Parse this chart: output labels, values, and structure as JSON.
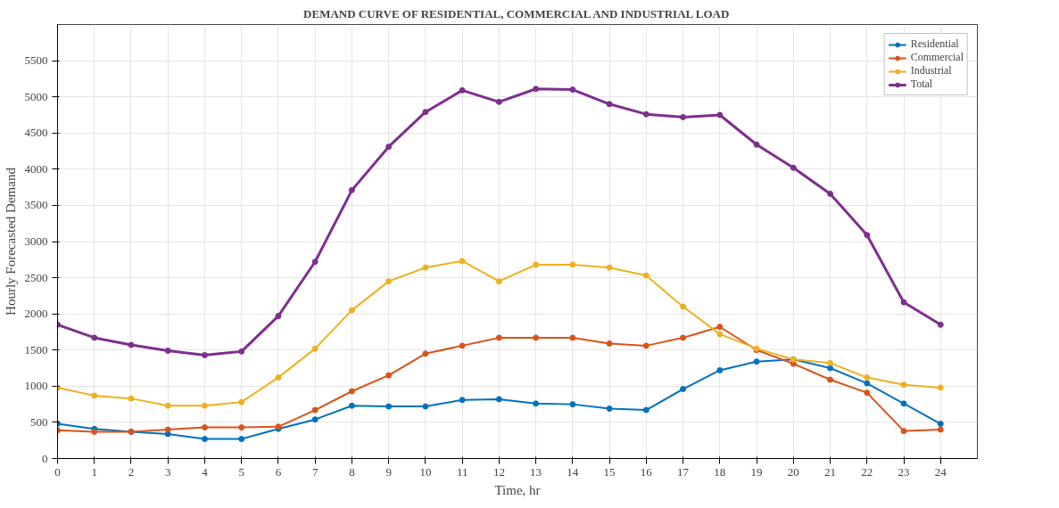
{
  "chart_data": {
    "type": "line",
    "title": "DEMAND CURVE OF RESIDENTIAL, COMMERCIAL AND INDUSTRIAL LOAD",
    "xlabel": "Time, hr",
    "ylabel": "Hourly Forecasted Demand",
    "x": [
      0,
      1,
      2,
      3,
      4,
      5,
      6,
      7,
      8,
      9,
      10,
      11,
      12,
      13,
      14,
      15,
      16,
      17,
      18,
      19,
      20,
      21,
      22,
      23,
      24
    ],
    "series": [
      {
        "name": "Residential",
        "color": "#0072bd",
        "values": [
          480,
          410,
          370,
          340,
          270,
          270,
          410,
          540,
          730,
          720,
          720,
          810,
          820,
          760,
          750,
          690,
          670,
          960,
          1220,
          1340,
          1370,
          1250,
          1040,
          760,
          480
        ]
      },
      {
        "name": "Commercial",
        "color": "#d95319",
        "values": [
          390,
          370,
          370,
          400,
          430,
          430,
          440,
          670,
          930,
          1150,
          1450,
          1560,
          1670,
          1670,
          1670,
          1590,
          1560,
          1670,
          1820,
          1500,
          1310,
          1090,
          910,
          380,
          400
        ]
      },
      {
        "name": "Industrial",
        "color": "#edb120",
        "values": [
          980,
          870,
          830,
          730,
          730,
          780,
          1120,
          1520,
          2050,
          2450,
          2640,
          2730,
          2450,
          2680,
          2680,
          2640,
          2530,
          2100,
          1720,
          1520,
          1370,
          1320,
          1120,
          1020,
          980
        ]
      },
      {
        "name": "Total",
        "color": "#7e2f8e",
        "values": [
          1850,
          1670,
          1570,
          1490,
          1430,
          1480,
          1970,
          2720,
          3710,
          4310,
          4790,
          5090,
          4930,
          5110,
          5100,
          4900,
          4760,
          4720,
          4750,
          4340,
          4020,
          3660,
          3090,
          2160,
          1850
        ]
      }
    ],
    "xlim": [
      0,
      25
    ],
    "xticks": [
      0,
      1,
      2,
      3,
      4,
      5,
      6,
      7,
      8,
      9,
      10,
      11,
      12,
      13,
      14,
      15,
      16,
      17,
      18,
      19,
      20,
      21,
      22,
      23,
      24
    ],
    "ylim": [
      0,
      6000
    ],
    "yticks": [
      0,
      500,
      1000,
      1500,
      2000,
      2500,
      3000,
      3500,
      4000,
      4500,
      5000,
      5500
    ],
    "grid": true,
    "legend": "top right",
    "marker": "circle",
    "line_style": "solid"
  }
}
